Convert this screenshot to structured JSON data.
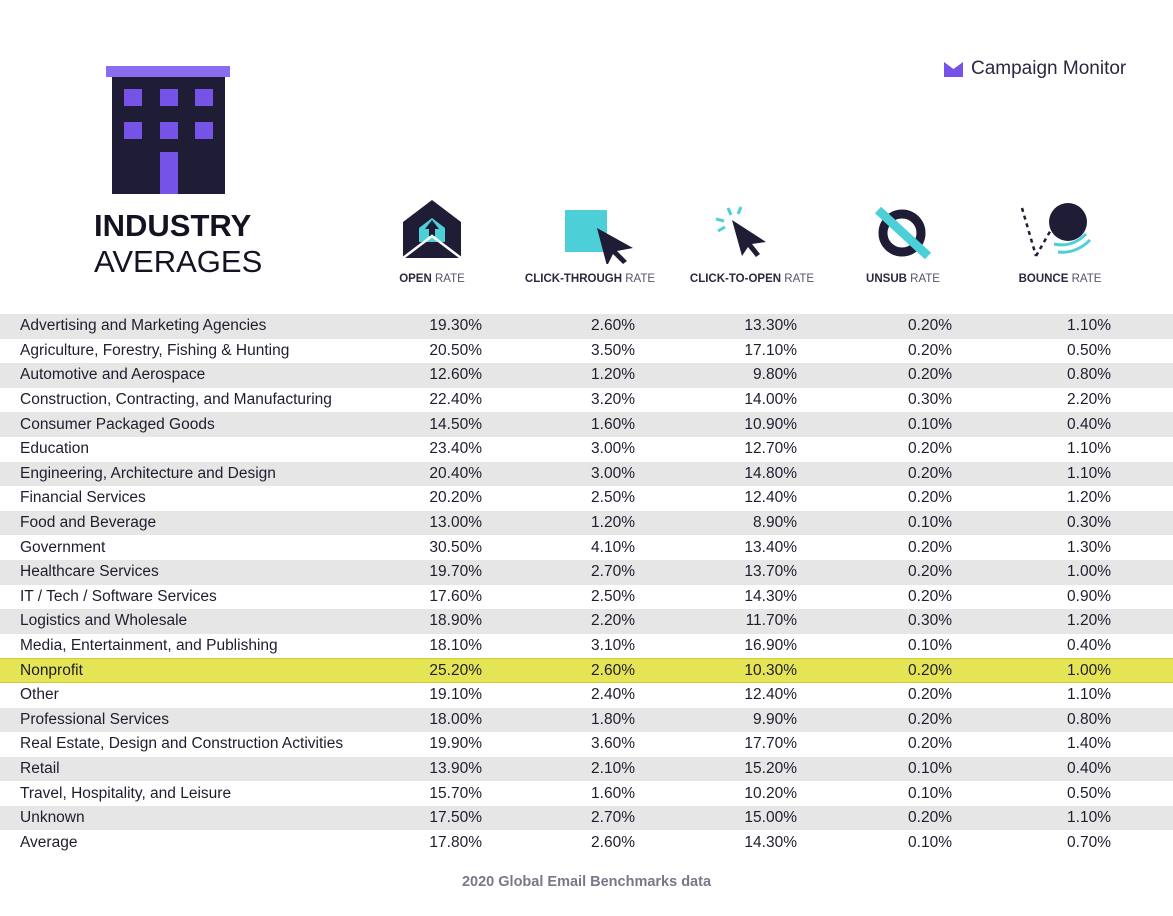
{
  "brand": {
    "name": "Campaign Monitor"
  },
  "title": {
    "line1": "INDUSTRY",
    "line2": "AVERAGES"
  },
  "columns": [
    {
      "bold": "OPEN",
      "rest": "RATE",
      "icon": "envelope-icon"
    },
    {
      "bold": "CLICK-THROUGH",
      "rest": "RATE",
      "icon": "click-cursor-icon"
    },
    {
      "bold": "CLICK-TO-OPEN",
      "rest": "RATE",
      "icon": "cursor-sparkle-icon"
    },
    {
      "bold": "UNSUB",
      "rest": "RATE",
      "icon": "unsubscribe-icon"
    },
    {
      "bold": "BOUNCE",
      "rest": "RATE",
      "icon": "bounce-ball-icon"
    }
  ],
  "colors": {
    "accent": "#7453e6",
    "teal": "#4dcfd8",
    "navy": "#1f1d36",
    "highlight": "#e5e455",
    "shade": "#e6e6e6"
  },
  "chart_data": {
    "type": "table",
    "title": "INDUSTRY AVERAGES",
    "columns": [
      "OPEN RATE",
      "CLICK-THROUGH RATE",
      "CLICK-TO-OPEN RATE",
      "UNSUB RATE",
      "BOUNCE RATE"
    ],
    "highlighted_row": "Nonprofit",
    "rows": [
      {
        "industry": "Advertising and Marketing Agencies",
        "values": [
          "19.30%",
          "2.60%",
          "13.30%",
          "0.20%",
          "1.10%"
        ]
      },
      {
        "industry": "Agriculture, Forestry, Fishing & Hunting",
        "values": [
          "20.50%",
          "3.50%",
          "17.10%",
          "0.20%",
          "0.50%"
        ]
      },
      {
        "industry": "Automotive and Aerospace",
        "values": [
          "12.60%",
          "1.20%",
          "9.80%",
          "0.20%",
          "0.80%"
        ]
      },
      {
        "industry": "Construction, Contracting, and Manufacturing",
        "values": [
          "22.40%",
          "3.20%",
          "14.00%",
          "0.30%",
          "2.20%"
        ]
      },
      {
        "industry": "Consumer Packaged Goods",
        "values": [
          "14.50%",
          "1.60%",
          "10.90%",
          "0.10%",
          "0.40%"
        ]
      },
      {
        "industry": "Education",
        "values": [
          "23.40%",
          "3.00%",
          "12.70%",
          "0.20%",
          "1.10%"
        ]
      },
      {
        "industry": "Engineering, Architecture and Design",
        "values": [
          "20.40%",
          "3.00%",
          "14.80%",
          "0.20%",
          "1.10%"
        ]
      },
      {
        "industry": "Financial Services",
        "values": [
          "20.20%",
          "2.50%",
          "12.40%",
          "0.20%",
          "1.20%"
        ]
      },
      {
        "industry": "Food and Beverage",
        "values": [
          "13.00%",
          "1.20%",
          "8.90%",
          "0.10%",
          "0.30%"
        ]
      },
      {
        "industry": "Government",
        "values": [
          "30.50%",
          "4.10%",
          "13.40%",
          "0.20%",
          "1.30%"
        ]
      },
      {
        "industry": "Healthcare Services",
        "values": [
          "19.70%",
          "2.70%",
          "13.70%",
          "0.20%",
          "1.00%"
        ]
      },
      {
        "industry": "IT / Tech / Software Services",
        "values": [
          "17.60%",
          "2.50%",
          "14.30%",
          "0.20%",
          "0.90%"
        ]
      },
      {
        "industry": "Logistics and Wholesale",
        "values": [
          "18.90%",
          "2.20%",
          "11.70%",
          "0.30%",
          "1.20%"
        ]
      },
      {
        "industry": "Media, Entertainment, and Publishing",
        "values": [
          "18.10%",
          "3.10%",
          "16.90%",
          "0.10%",
          "0.40%"
        ]
      },
      {
        "industry": "Nonprofit",
        "values": [
          "25.20%",
          "2.60%",
          "10.30%",
          "0.20%",
          "1.00%"
        ]
      },
      {
        "industry": "Other",
        "values": [
          "19.10%",
          "2.40%",
          "12.40%",
          "0.20%",
          "1.10%"
        ]
      },
      {
        "industry": "Professional Services",
        "values": [
          "18.00%",
          "1.80%",
          "9.90%",
          "0.20%",
          "0.80%"
        ]
      },
      {
        "industry": "Real Estate, Design and Construction Activities",
        "values": [
          "19.90%",
          "3.60%",
          "17.70%",
          "0.20%",
          "1.40%"
        ]
      },
      {
        "industry": "Retail",
        "values": [
          "13.90%",
          "2.10%",
          "15.20%",
          "0.10%",
          "0.40%"
        ]
      },
      {
        "industry": "Travel, Hospitality, and Leisure",
        "values": [
          "15.70%",
          "1.60%",
          "10.20%",
          "0.10%",
          "0.50%"
        ]
      },
      {
        "industry": "Unknown",
        "values": [
          "17.50%",
          "2.70%",
          "15.00%",
          "0.20%",
          "1.10%"
        ]
      },
      {
        "industry": "Average",
        "values": [
          "17.80%",
          "2.60%",
          "14.30%",
          "0.10%",
          "0.70%"
        ]
      }
    ]
  },
  "footer": {
    "text": "2020 Global Email Benchmarks data"
  }
}
